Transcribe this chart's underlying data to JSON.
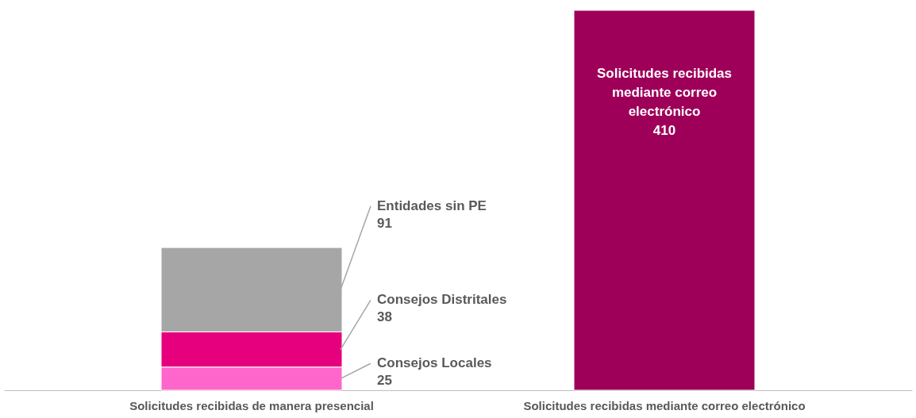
{
  "chart_data": {
    "type": "bar",
    "stacked": true,
    "categories": [
      "Solicitudes recibidas de manera presencial",
      "Solicitudes recibidas mediante correo electrónico"
    ],
    "series": [
      {
        "name": "Consejos Locales",
        "color": "#ff66cc",
        "values": [
          25,
          null
        ]
      },
      {
        "name": "Consejos Distritales",
        "color": "#e6007e",
        "values": [
          38,
          null
        ]
      },
      {
        "name": "Entidades sin PE",
        "color": "#a6a6a6",
        "values": [
          91,
          null
        ]
      },
      {
        "name": "Solicitudes recibidas mediante correo electrónico",
        "color": "#9e0059",
        "values": [
          null,
          410
        ]
      }
    ],
    "data_labels": true,
    "legend": false,
    "grid": false
  }
}
